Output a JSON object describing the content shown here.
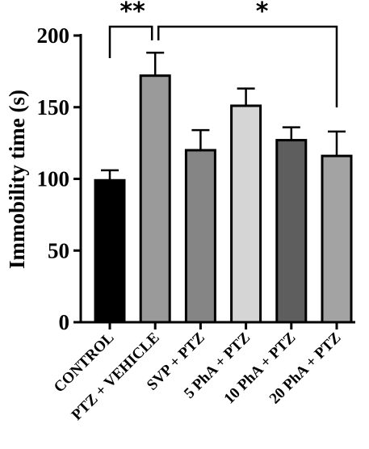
{
  "chart_data": {
    "type": "bar",
    "title": "",
    "xlabel": "",
    "ylabel": "Immobility time (s)",
    "ylim": [
      0,
      200
    ],
    "yticks": [
      0,
      50,
      100,
      150,
      200
    ],
    "grid": false,
    "categories": [
      "CONTROL",
      "PTZ + VEHICLE",
      "SVP + PTZ",
      "5 PhA + PTZ",
      "10 PhA + PTZ",
      "20 PhA + PTZ"
    ],
    "values": [
      99,
      172,
      120,
      151,
      127,
      116
    ],
    "errors": [
      7,
      16,
      14,
      12,
      9,
      17
    ],
    "colors": [
      "#000000",
      "#9a9a9a",
      "#858585",
      "#d5d5d5",
      "#5e5e5e",
      "#a3a3a3"
    ],
    "annotations": [
      {
        "label": "**",
        "from": "CONTROL",
        "to": "PTZ + VEHICLE"
      },
      {
        "label": "*",
        "from": "PTZ + VEHICLE",
        "to": "20 PhA + PTZ"
      }
    ]
  }
}
